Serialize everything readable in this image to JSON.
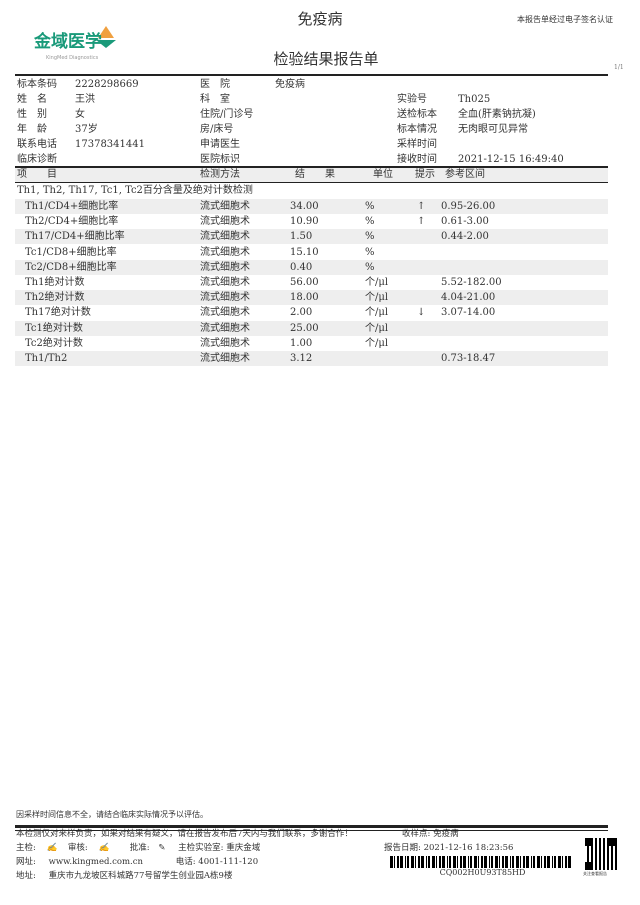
{
  "header": {
    "hospital_title": "免疫病",
    "report_title": "检验结果报告单",
    "esign_note": "本报告单经过电子签名认证",
    "page": "1/1",
    "logo_text": "金域医学",
    "logo_sub": "KingMed Diagnostics",
    "brand_color": "#1a9a7a"
  },
  "info": [
    [
      {
        "l": "标本条码",
        "v": "2228298669"
      },
      {
        "l": "医　院",
        "v": "免疫病"
      },
      {
        "l": "",
        "v": ""
      }
    ],
    [
      {
        "l": "姓　名",
        "v": "王洪"
      },
      {
        "l": "科　室",
        "v": ""
      },
      {
        "l": "实验号",
        "v": "Th025"
      }
    ],
    [
      {
        "l": "性　别",
        "v": "女"
      },
      {
        "l": "住院/门诊号",
        "v": ""
      },
      {
        "l": "送检标本",
        "v": "全血(肝素钠抗凝)"
      }
    ],
    [
      {
        "l": "年　龄",
        "v": "37岁"
      },
      {
        "l": "房/床号",
        "v": ""
      },
      {
        "l": "标本情况",
        "v": "无肉眼可见异常"
      }
    ],
    [
      {
        "l": "联系电话",
        "v": "17378341441"
      },
      {
        "l": "申请医生",
        "v": ""
      },
      {
        "l": "采样时间",
        "v": ""
      }
    ],
    [
      {
        "l": "临床诊断",
        "v": ""
      },
      {
        "l": "医院标识",
        "v": ""
      },
      {
        "l": "接收时间",
        "v": "2021-12-15 16:49:40"
      }
    ]
  ],
  "table": {
    "headers": {
      "item": "项　　目",
      "method": "检测方法",
      "result": "结　　果",
      "unit": "单位",
      "flag": "提示",
      "ref": "参考区间"
    },
    "section": "Th1, Th2, Th17, Tc1, Tc2百分含量及绝对计数检测",
    "rows": [
      {
        "item": "Th1/CD4+细胞比率",
        "method": "流式细胞术",
        "result": "34.00",
        "unit": "%",
        "flag": "↑",
        "ref": "0.95-26.00"
      },
      {
        "item": "Th2/CD4+细胞比率",
        "method": "流式细胞术",
        "result": "10.90",
        "unit": "%",
        "flag": "↑",
        "ref": "0.61-3.00"
      },
      {
        "item": "Th17/CD4+细胞比率",
        "method": "流式细胞术",
        "result": "1.50",
        "unit": "%",
        "flag": "",
        "ref": "0.44-2.00"
      },
      {
        "item": "Tc1/CD8+细胞比率",
        "method": "流式细胞术",
        "result": "15.10",
        "unit": "%",
        "flag": "",
        "ref": ""
      },
      {
        "item": "Tc2/CD8+细胞比率",
        "method": "流式细胞术",
        "result": "0.40",
        "unit": "%",
        "flag": "",
        "ref": ""
      },
      {
        "item": "Th1绝对计数",
        "method": "流式细胞术",
        "result": "56.00",
        "unit": "个/μl",
        "flag": "",
        "ref": "5.52-182.00"
      },
      {
        "item": "Th2绝对计数",
        "method": "流式细胞术",
        "result": "18.00",
        "unit": "个/μl",
        "flag": "",
        "ref": "4.04-21.00"
      },
      {
        "item": "Th17绝对计数",
        "method": "流式细胞术",
        "result": "2.00",
        "unit": "个/μl",
        "flag": "↓",
        "ref": "3.07-14.00"
      },
      {
        "item": "Tc1绝对计数",
        "method": "流式细胞术",
        "result": "25.00",
        "unit": "个/μl",
        "flag": "",
        "ref": ""
      },
      {
        "item": "Tc2绝对计数",
        "method": "流式细胞术",
        "result": "1.00",
        "unit": "个/μl",
        "flag": "",
        "ref": ""
      },
      {
        "item": "Th1/Th2",
        "method": "流式细胞术",
        "result": "3.12",
        "unit": "",
        "flag": "",
        "ref": "0.73-18.47"
      }
    ]
  },
  "footer": {
    "note": "因采样时间信息不全，请结合临床实际情况予以评估。",
    "disclaimer": "本检测仅对来样负责，如果对结果有疑义，请在报告发布后7天内与我们联系，多谢合作！",
    "collection_point_label": "收样点:",
    "collection_point": "免疫病",
    "tester_label": "主检:",
    "reviewer_label": "审核:",
    "approver_label": "批准:",
    "lab_label": "主检实验室:",
    "lab": "重庆金域",
    "report_date_label": "报告日期:",
    "report_date": "2021-12-16 18:23:56",
    "website_label": "网址:",
    "website": "www.kingmed.com.cn",
    "phone_label": "电话:",
    "phone": "4001-111-120",
    "address_label": "地址:",
    "address": "重庆市九龙坡区科城路77号留学生创业园A栋9楼",
    "barcode": "CQ002H0U93T85HD",
    "qr_caption": "关注查看报告"
  }
}
